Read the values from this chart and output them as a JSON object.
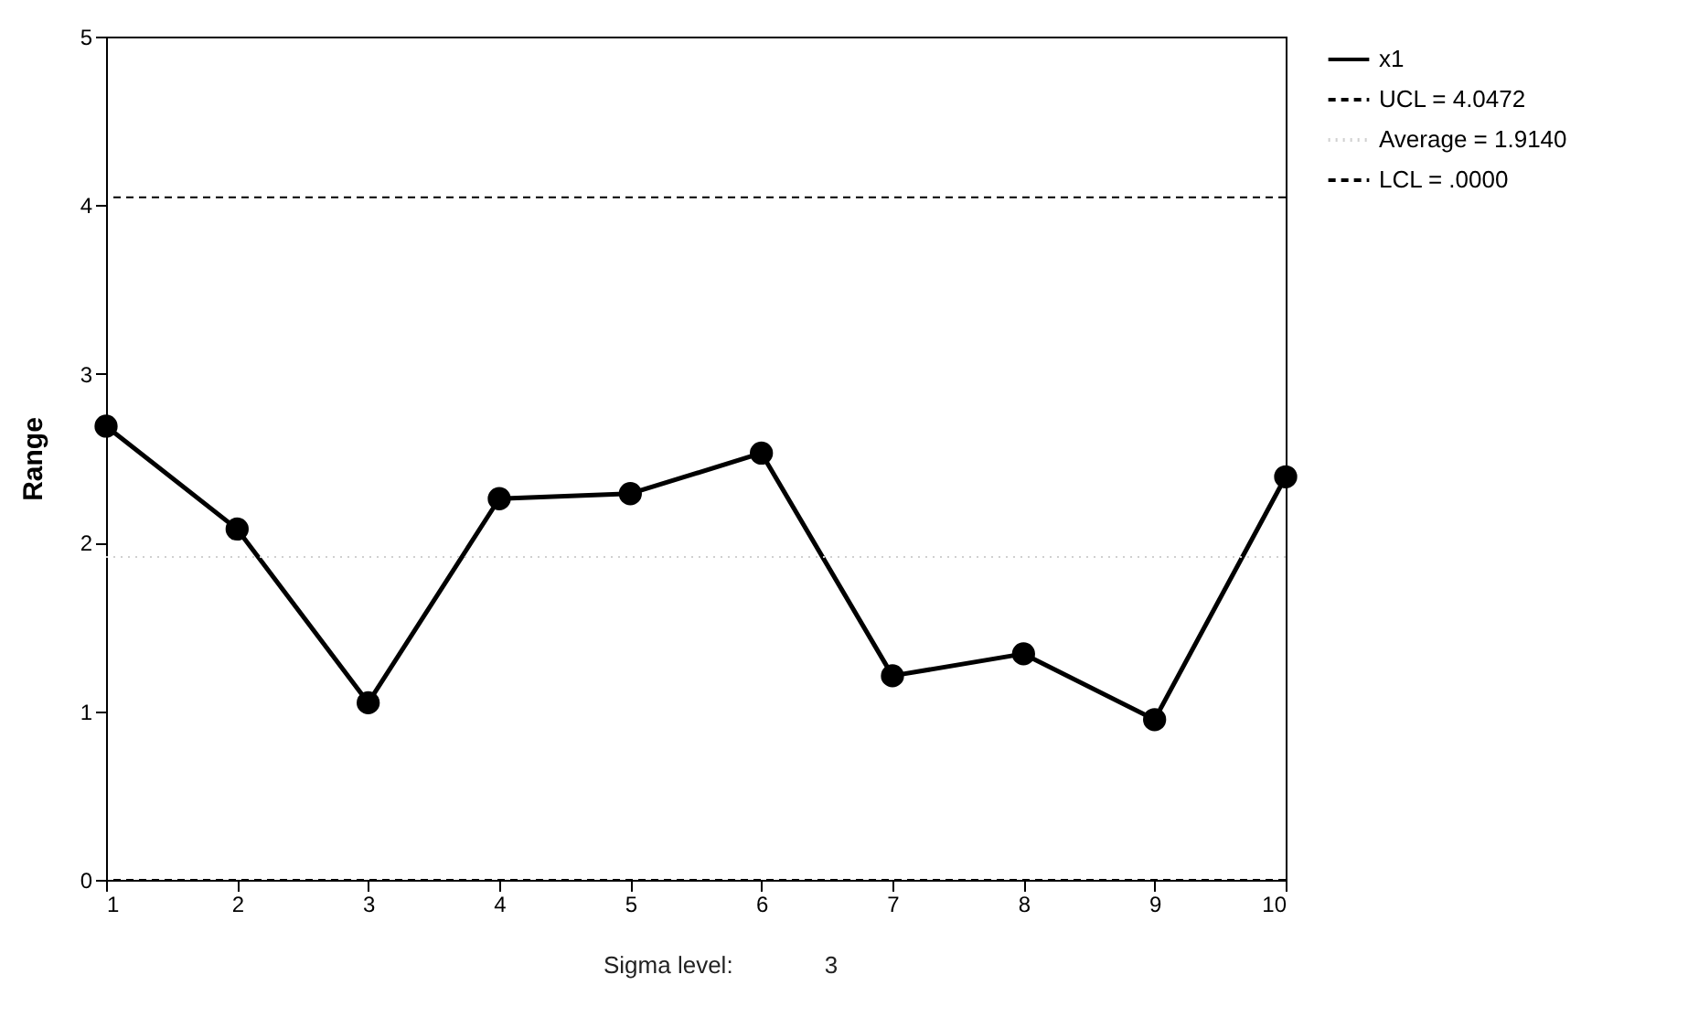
{
  "chart_data": {
    "type": "line",
    "ylabel": "Range",
    "x": [
      1,
      2,
      3,
      4,
      5,
      6,
      7,
      8,
      9,
      10
    ],
    "series": [
      {
        "name": "x1",
        "color": "#000000",
        "values": [
          2.69,
          2.08,
          1.05,
          2.26,
          2.29,
          2.53,
          1.21,
          1.34,
          0.95,
          2.39
        ]
      }
    ],
    "marker": "circle",
    "line_style": "solid",
    "xlim": [
      1,
      10
    ],
    "xticks": [
      1,
      2,
      3,
      4,
      5,
      6,
      7,
      8,
      9,
      10
    ],
    "ylim": [
      0,
      5
    ],
    "yticks": [
      0,
      1,
      2,
      3,
      4,
      5
    ],
    "ref_lines": [
      {
        "axis": "y",
        "value": 4.0472,
        "label": "UCL = 4.0472",
        "color": "#000000",
        "line_style": "dashed"
      },
      {
        "axis": "y",
        "value": 1.914,
        "label": "Average = 1.9140",
        "color": "#d0d0d0",
        "line_style": "dotted"
      },
      {
        "axis": "y",
        "value": 0,
        "label": "LCL = .0000",
        "color": "#000000",
        "line_style": "dashed"
      }
    ],
    "legend": "top right",
    "annotations": [
      "Sigma level:",
      "3"
    ]
  }
}
